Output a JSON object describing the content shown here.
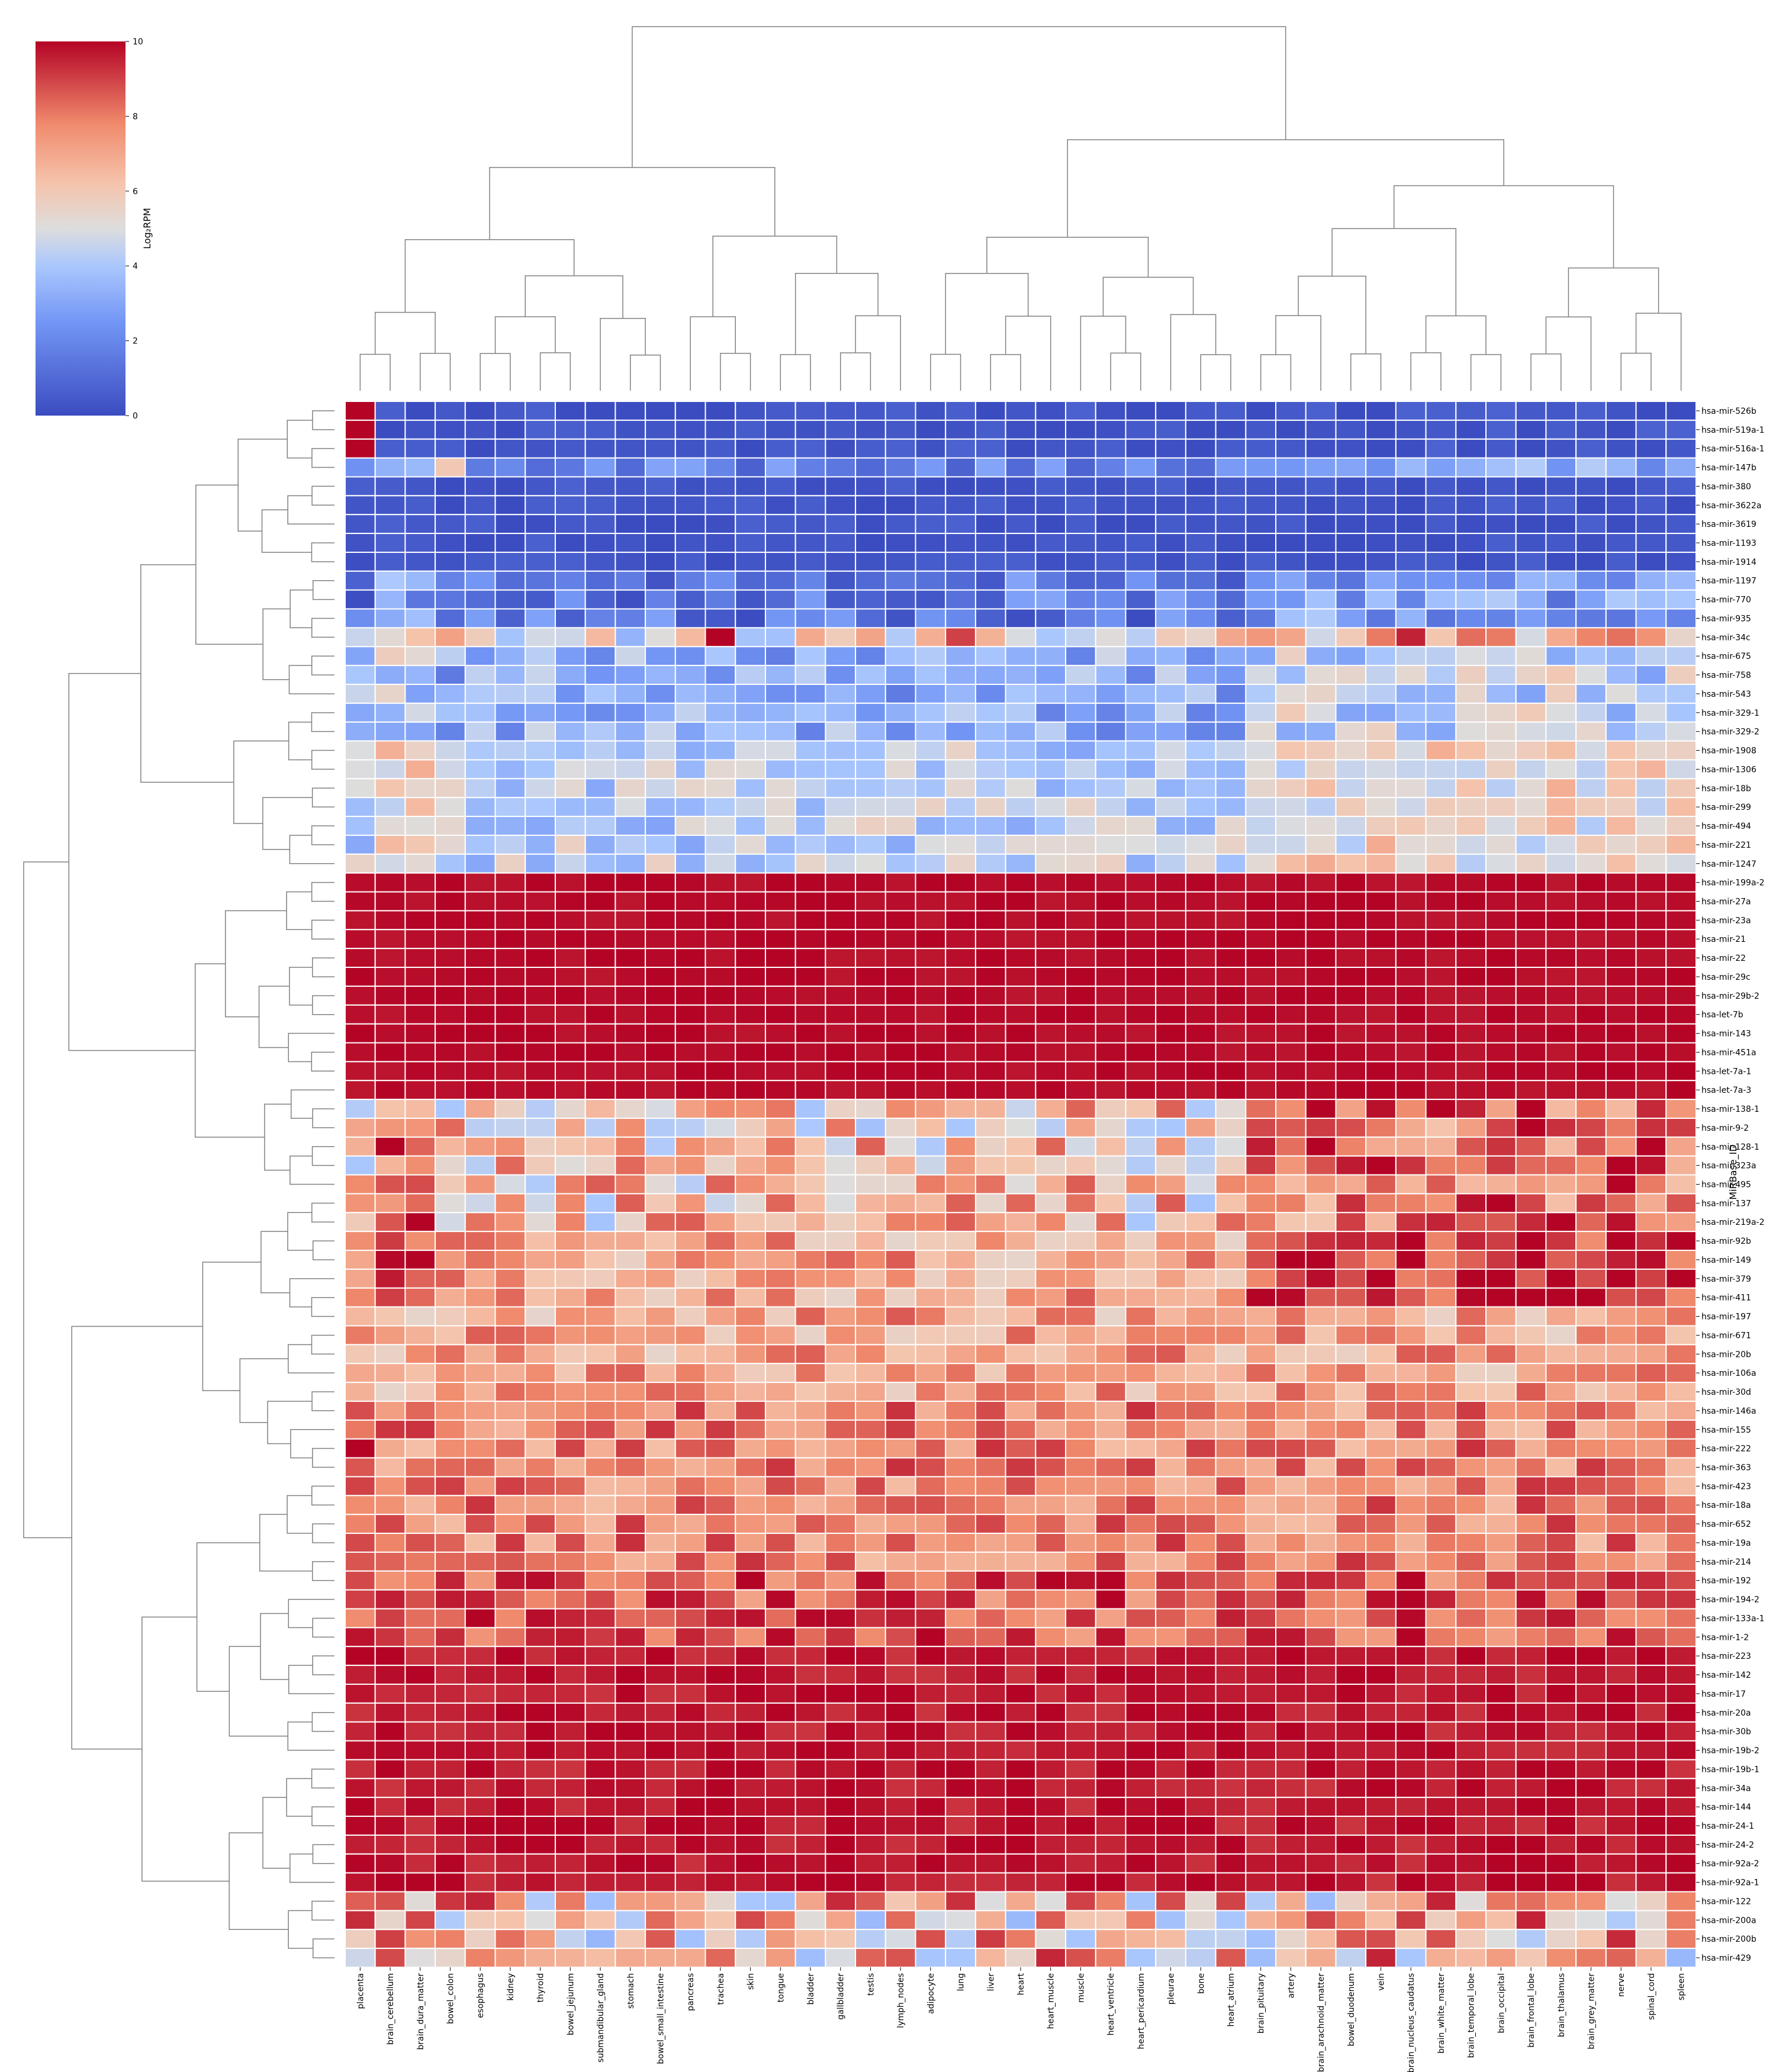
{
  "chart_data": {
    "type": "heatmap",
    "title": "",
    "ylabel": "MiRBase_ID",
    "colorbar": {
      "label": "Log₂RPM",
      "range": [
        0,
        10
      ],
      "ticks": [
        "0",
        "2",
        "4",
        "6",
        "8",
        "10"
      ],
      "colormap": "coolwarm",
      "colors": [
        "#3b4cc0",
        "#aac7fd",
        "#dddddd",
        "#f7a889",
        "#b40426"
      ]
    },
    "columns": [
      "placenta",
      "brain_cerebellum",
      "brain_dura_matter",
      "bowel_colon",
      "esophagus",
      "kidney",
      "thyroid",
      "bowel_jejunum",
      "submandibular_gland",
      "stomach",
      "bowel_small_intestine",
      "pancreas",
      "trachea",
      "skin",
      "tongue",
      "bladder",
      "gallbladder",
      "testis",
      "lymph_nodes",
      "adipocyte",
      "lung",
      "liver",
      "heart",
      "heart_muscle",
      "muscle",
      "heart_ventricle",
      "heart_pericardium",
      "pleurae",
      "bone",
      "heart_atrium",
      "brain_pituitary",
      "artery",
      "brain_arachnoid_matter",
      "bowel_duodenum",
      "vein",
      "brain_nucleus_caudatus",
      "brain_white_matter",
      "brain_temporal_lobe",
      "brain_occipital",
      "brain_frontal_lobe",
      "brain_thalamus",
      "brain_grey_matter",
      "nerve",
      "spinal_cord",
      "spleen"
    ],
    "rows": [
      "hsa-mir-526b",
      "hsa-mir-519a-1",
      "hsa-mir-516a-1",
      "hsa-mir-147b",
      "hsa-mir-380",
      "hsa-mir-3622a",
      "hsa-mir-3619",
      "hsa-mir-1193",
      "hsa-mir-1914",
      "hsa-mir-1197",
      "hsa-mir-770",
      "hsa-mir-935",
      "hsa-mir-34c",
      "hsa-mir-675",
      "hsa-mir-758",
      "hsa-mir-543",
      "hsa-mir-329-1",
      "hsa-mir-329-2",
      "hsa-mir-1908",
      "hsa-mir-1306",
      "hsa-mir-18b",
      "hsa-mir-299",
      "hsa-mir-494",
      "hsa-mir-221",
      "hsa-mir-1247",
      "hsa-mir-199a-2",
      "hsa-mir-27a",
      "hsa-mir-23a",
      "hsa-mir-21",
      "hsa-mir-22",
      "hsa-mir-29c",
      "hsa-mir-29b-2",
      "hsa-let-7b",
      "hsa-mir-143",
      "hsa-mir-451a",
      "hsa-let-7a-1",
      "hsa-let-7a-3",
      "hsa-mir-138-1",
      "hsa-mir-9-2",
      "hsa-mir-128-1",
      "hsa-mir-323a",
      "hsa-mir-495",
      "hsa-mir-137",
      "hsa-mir-219a-2",
      "hsa-mir-92b",
      "hsa-mir-149",
      "hsa-mir-379",
      "hsa-mir-411",
      "hsa-mir-197",
      "hsa-mir-671",
      "hsa-mir-20b",
      "hsa-mir-106a",
      "hsa-mir-30d",
      "hsa-mir-146a",
      "hsa-mir-155",
      "hsa-mir-222",
      "hsa-mir-363",
      "hsa-mir-423",
      "hsa-mir-18a",
      "hsa-mir-652",
      "hsa-mir-19a",
      "hsa-mir-214",
      "hsa-mir-192",
      "hsa-mir-194-2",
      "hsa-mir-133a-1",
      "hsa-mir-1-2",
      "hsa-mir-223",
      "hsa-mir-142",
      "hsa-mir-17",
      "hsa-mir-20a",
      "hsa-mir-30b",
      "hsa-mir-19b-2",
      "hsa-mir-19b-1",
      "hsa-mir-34a",
      "hsa-mir-144",
      "hsa-mir-24-1",
      "hsa-mir-24-2",
      "hsa-mir-92a-2",
      "hsa-mir-92a-1",
      "hsa-mir-122",
      "hsa-mir-200a",
      "hsa-mir-200b",
      "hsa-mir-429"
    ],
    "row_profiles": [
      {
        "rows": [
          0,
          2
        ],
        "base": 0.3,
        "jitter": 0.5
      },
      {
        "rows": [
          3,
          3
        ],
        "base": 1.8,
        "jitter": 1.2
      },
      {
        "rows": [
          4,
          8
        ],
        "base": 0.3,
        "jitter": 0.4
      },
      {
        "rows": [
          9,
          11
        ],
        "base": 1.5,
        "jitter": 1.5
      },
      {
        "rows": [
          12,
          12
        ],
        "base": 5.2,
        "jitter": 2.0
      },
      {
        "rows": [
          13,
          17
        ],
        "base": 3.2,
        "jitter": 1.6
      },
      {
        "rows": [
          18,
          24
        ],
        "base": 4.3,
        "jitter": 1.4
      },
      {
        "rows": [
          25,
          36
        ],
        "base": 9.9,
        "jitter": 0.2
      },
      {
        "rows": [
          37,
          43
        ],
        "base": 6.2,
        "jitter": 2.4
      },
      {
        "rows": [
          44,
          52
        ],
        "base": 7.0,
        "jitter": 1.6
      },
      {
        "rows": [
          53,
          61
        ],
        "base": 7.8,
        "jitter": 1.5
      },
      {
        "rows": [
          62,
          65
        ],
        "base": 8.6,
        "jitter": 1.5
      },
      {
        "rows": [
          66,
          78
        ],
        "base": 9.7,
        "jitter": 0.5
      },
      {
        "rows": [
          79,
          82
        ],
        "base": 6.5,
        "jitter": 3.0
      }
    ],
    "col_groups": {
      "brain": [
        1,
        2,
        30,
        31,
        32,
        33,
        34,
        35,
        36,
        37,
        38,
        39,
        40,
        41,
        42,
        43,
        44
      ],
      "body": [
        3,
        4,
        5,
        6,
        7,
        8,
        9,
        10,
        11,
        12,
        13,
        14,
        15,
        16,
        17,
        18,
        19,
        20,
        21,
        22,
        23,
        24,
        25,
        26,
        27,
        28,
        29
      ],
      "placenta": [
        0
      ]
    },
    "overrides": [
      {
        "row": 0,
        "col": 0,
        "value": 10
      },
      {
        "row": 1,
        "col": 0,
        "value": 10
      },
      {
        "row": 2,
        "col": 0,
        "value": 10
      },
      {
        "row": 3,
        "col": 3,
        "value": 6
      },
      {
        "row": 12,
        "col": 12,
        "value": 10
      },
      {
        "row": 12,
        "col": 35,
        "value": 9.5
      },
      {
        "row": 12,
        "col": 20,
        "value": 9
      }
    ]
  }
}
